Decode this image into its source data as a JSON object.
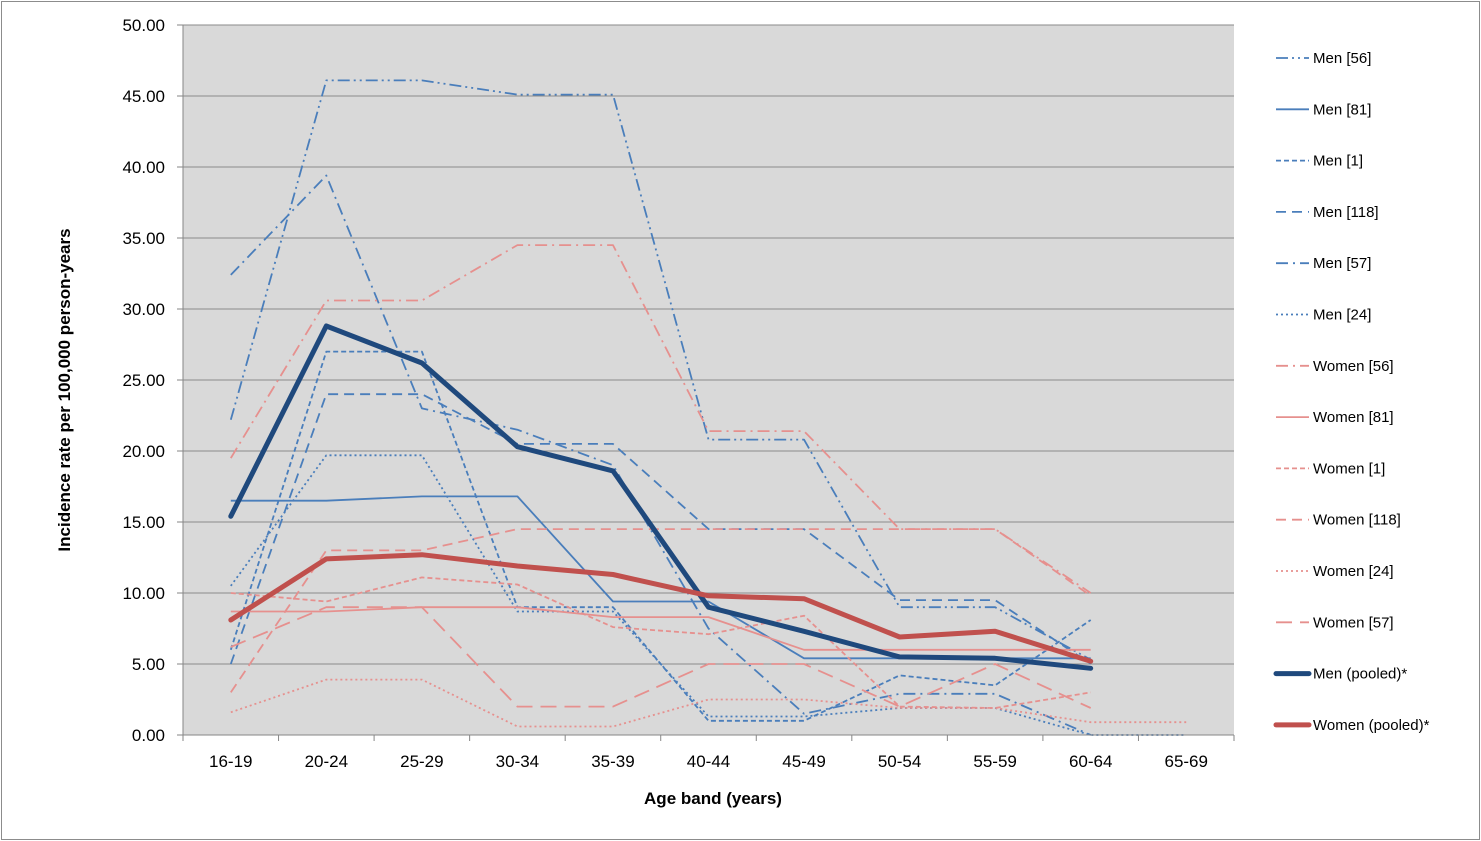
{
  "chart_data": {
    "type": "line",
    "title": "",
    "xlabel": "Age band (years)",
    "ylabel": "Incidence rate per 100,000 person-years",
    "ylim": [
      0,
      50
    ],
    "y_ticks": [
      "0.00",
      "5.00",
      "10.00",
      "15.00",
      "20.00",
      "25.00",
      "30.00",
      "35.00",
      "40.00",
      "45.00",
      "50.00"
    ],
    "categories": [
      "16-19",
      "20-24",
      "25-29",
      "30-34",
      "35-39",
      "40-44",
      "45-49",
      "50-54",
      "55-59",
      "60-64",
      "65-69"
    ],
    "grid": true,
    "legend_position": "right",
    "plot_background": "#d9d9d9",
    "series": [
      {
        "name": "Men [56]",
        "color": "#4a7ebb",
        "dash": "dashdotdot",
        "width": "thin",
        "values": [
          22.2,
          46.1,
          46.1,
          45.1,
          45.1,
          20.8,
          20.8,
          9.0,
          9.0,
          5.3,
          null
        ]
      },
      {
        "name": "Men [81]",
        "color": "#4a7ebb",
        "dash": "solid",
        "width": "thin",
        "values": [
          16.5,
          16.5,
          16.8,
          16.8,
          9.4,
          9.4,
          5.4,
          5.4,
          5.4,
          5.4,
          null
        ]
      },
      {
        "name": "Men [1]",
        "color": "#4a7ebb",
        "dash": "shortdash",
        "width": "thin",
        "values": [
          6.0,
          27.0,
          27.0,
          9.0,
          9.0,
          1.0,
          1.0,
          4.2,
          3.5,
          8.1,
          null
        ]
      },
      {
        "name": "Men [118]",
        "color": "#4a7ebb",
        "dash": "dash",
        "width": "thin",
        "values": [
          5.0,
          24.0,
          24.0,
          20.5,
          20.5,
          14.5,
          14.5,
          9.5,
          9.5,
          5.0,
          null
        ]
      },
      {
        "name": "Men [57]",
        "color": "#4a7ebb",
        "dash": "dashdot",
        "width": "thin",
        "values": [
          32.4,
          39.4,
          23.0,
          21.5,
          19.0,
          7.5,
          1.5,
          2.9,
          2.9,
          0.0,
          null
        ]
      },
      {
        "name": "Men [24]",
        "color": "#4a7ebb",
        "dash": "dot",
        "width": "thin",
        "values": [
          10.5,
          19.7,
          19.7,
          8.7,
          8.7,
          1.3,
          1.3,
          1.9,
          1.9,
          0.0,
          0.0
        ]
      },
      {
        "name": "Women [56]",
        "color": "#e6908e",
        "dash": "dashdot",
        "width": "thin",
        "values": [
          19.5,
          30.6,
          30.6,
          34.5,
          34.5,
          21.4,
          21.4,
          14.5,
          14.5,
          10.0,
          null
        ]
      },
      {
        "name": "Women [81]",
        "color": "#e6908e",
        "dash": "solid",
        "width": "thin",
        "values": [
          8.7,
          8.7,
          9.0,
          9.0,
          8.3,
          8.3,
          6.0,
          6.0,
          6.0,
          6.0,
          null
        ]
      },
      {
        "name": "Women [1]",
        "color": "#e6908e",
        "dash": "shortdash",
        "width": "thin",
        "values": [
          10.0,
          9.4,
          11.1,
          10.6,
          7.6,
          7.1,
          8.4,
          2.0,
          1.9,
          3.0,
          null
        ]
      },
      {
        "name": "Women [118]",
        "color": "#e6908e",
        "dash": "dash",
        "width": "thin",
        "values": [
          3.0,
          13.0,
          13.0,
          14.5,
          14.5,
          14.5,
          14.5,
          14.5,
          14.5,
          9.8,
          null
        ]
      },
      {
        "name": "Women [24]",
        "color": "#e6908e",
        "dash": "dot",
        "width": "thin",
        "values": [
          1.6,
          3.9,
          3.9,
          0.6,
          0.6,
          2.5,
          2.5,
          1.9,
          1.9,
          0.9,
          0.9
        ]
      },
      {
        "name": "Women [57]",
        "color": "#e6908e",
        "dash": "longdash",
        "width": "thin",
        "values": [
          6.2,
          9.0,
          9.0,
          2.0,
          2.0,
          5.0,
          5.0,
          2.0,
          5.0,
          1.9,
          null
        ]
      },
      {
        "name": "Men (pooled)*",
        "color": "#1f497d",
        "dash": "solid",
        "width": "thick",
        "values": [
          15.4,
          28.8,
          26.2,
          20.3,
          18.6,
          9.0,
          7.3,
          5.5,
          5.4,
          4.7,
          null
        ]
      },
      {
        "name": "Women (pooled)*",
        "color": "#c0504d",
        "dash": "solid",
        "width": "thick",
        "values": [
          8.1,
          12.4,
          12.7,
          11.9,
          11.3,
          9.8,
          9.6,
          6.9,
          7.3,
          5.2,
          null
        ]
      }
    ]
  }
}
